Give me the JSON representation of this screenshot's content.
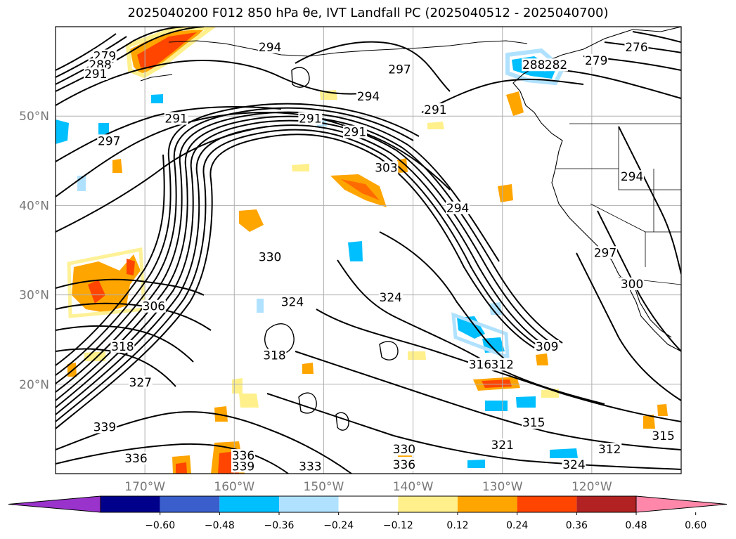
{
  "title": "2025040200 F012 850 hPa θe, IVT Landfall PC (2025040512 - 2025040700)",
  "map": {
    "lat_labels": [
      {
        "lat": 50,
        "text": "50°N"
      },
      {
        "lat": 40,
        "text": "40°N"
      },
      {
        "lat": 30,
        "text": "30°N"
      },
      {
        "lat": 20,
        "text": "20°N"
      }
    ],
    "lon_labels": [
      {
        "lon": -170,
        "text": "170°W"
      },
      {
        "lon": -160,
        "text": "160°W"
      },
      {
        "lon": -150,
        "text": "150°W"
      },
      {
        "lon": -140,
        "text": "140°W"
      },
      {
        "lon": -130,
        "text": "130°W"
      },
      {
        "lon": -120,
        "text": "120°W"
      }
    ],
    "contour_labels": [
      {
        "text": "279",
        "lon": -174.5,
        "lat": 56.5
      },
      {
        "text": "288",
        "lon": -175.0,
        "lat": 55.5
      },
      {
        "text": "291",
        "lon": -175.5,
        "lat": 54.5
      },
      {
        "text": "294",
        "lon": -156.0,
        "lat": 57.5
      },
      {
        "text": "297",
        "lon": -141.5,
        "lat": 55.0
      },
      {
        "text": "294",
        "lon": -145.0,
        "lat": 52.0
      },
      {
        "text": "291",
        "lon": -166.5,
        "lat": 49.5
      },
      {
        "text": "297",
        "lon": -174.0,
        "lat": 47.0
      },
      {
        "text": "291",
        "lon": -151.5,
        "lat": 49.5
      },
      {
        "text": "291",
        "lon": -146.5,
        "lat": 48.0
      },
      {
        "text": "291",
        "lon": -137.5,
        "lat": 50.5
      },
      {
        "text": "303",
        "lon": -143.0,
        "lat": 44.0
      },
      {
        "text": "294",
        "lon": -135.0,
        "lat": 39.5
      },
      {
        "text": "288",
        "lon": -126.5,
        "lat": 55.5
      },
      {
        "text": "282",
        "lon": -124.0,
        "lat": 55.5
      },
      {
        "text": "279",
        "lon": -119.5,
        "lat": 56.0
      },
      {
        "text": "276",
        "lon": -115.0,
        "lat": 57.5
      },
      {
        "text": "294",
        "lon": -115.5,
        "lat": 43.0
      },
      {
        "text": "297",
        "lon": -118.5,
        "lat": 34.5
      },
      {
        "text": "300",
        "lon": -115.5,
        "lat": 31.0
      },
      {
        "text": "330",
        "lon": -156.0,
        "lat": 34.0
      },
      {
        "text": "324",
        "lon": -153.5,
        "lat": 29.0
      },
      {
        "text": "324",
        "lon": -142.5,
        "lat": 29.5
      },
      {
        "text": "306",
        "lon": -169.0,
        "lat": 28.5
      },
      {
        "text": "318",
        "lon": -172.5,
        "lat": 24.0
      },
      {
        "text": "327",
        "lon": -170.5,
        "lat": 20.0
      },
      {
        "text": "318",
        "lon": -155.5,
        "lat": 23.0
      },
      {
        "text": "316",
        "lon": -132.5,
        "lat": 22.0
      },
      {
        "text": "312",
        "lon": -130.0,
        "lat": 22.0
      },
      {
        "text": "309",
        "lon": -125.0,
        "lat": 24.0
      },
      {
        "text": "315",
        "lon": -126.5,
        "lat": 15.5
      },
      {
        "text": "339",
        "lon": -174.5,
        "lat": 15.0
      },
      {
        "text": "336",
        "lon": -171.0,
        "lat": 11.5
      },
      {
        "text": "336",
        "lon": -159.0,
        "lat": 11.8
      },
      {
        "text": "339",
        "lon": -159.0,
        "lat": 10.6
      },
      {
        "text": "333",
        "lon": -151.5,
        "lat": 10.6
      },
      {
        "text": "330",
        "lon": -141.0,
        "lat": 12.5
      },
      {
        "text": "336",
        "lon": -141.0,
        "lat": 10.8
      },
      {
        "text": "321",
        "lon": -130.0,
        "lat": 13.0
      },
      {
        "text": "324",
        "lon": -122.0,
        "lat": 10.8
      },
      {
        "text": "315",
        "lon": -112.0,
        "lat": 14.0
      },
      {
        "text": "312",
        "lon": -118.0,
        "lat": 12.5
      }
    ],
    "colors": {
      "grid": "#b0b0b0",
      "coast": "#000000"
    }
  },
  "colorbar": {
    "colors": [
      "#9933cc",
      "#00008b",
      "#3a5fcd",
      "#00bfff",
      "#b0e2ff",
      "#ffffff",
      "#fff08c",
      "#ffa500",
      "#ff4500",
      "#b22222",
      "#ff88aa"
    ],
    "tick_labels": [
      "−0.60",
      "−0.48",
      "−0.36",
      "−0.24",
      "−0.12",
      "0.12",
      "0.24",
      "0.36",
      "0.48",
      "0.60"
    ]
  }
}
